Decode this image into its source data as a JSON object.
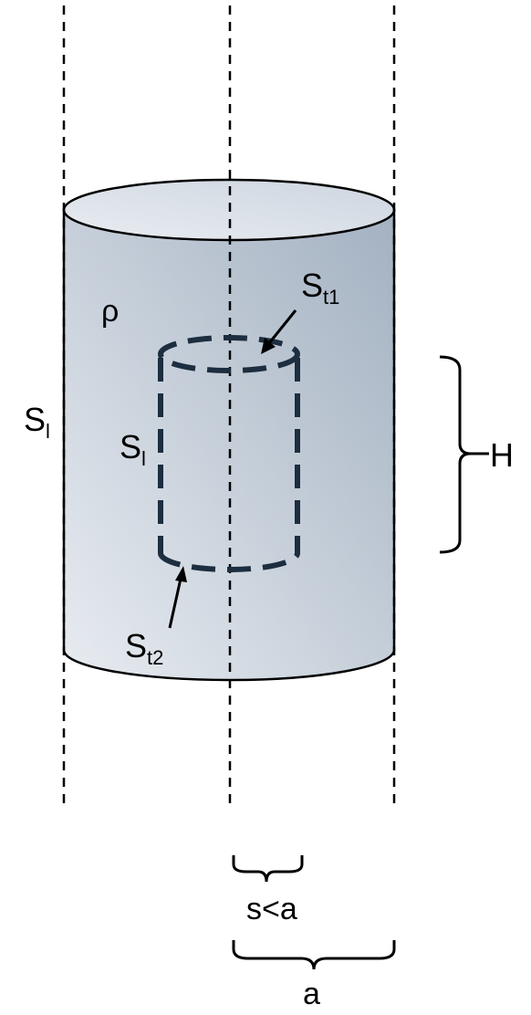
{
  "labels": {
    "density": "ρ",
    "outer_lateral_surface": {
      "main": "S",
      "sub": "l"
    },
    "inner_lateral_surface": {
      "main": "S",
      "sub": "l"
    },
    "top_surface": {
      "main": "S",
      "sub": "t1"
    },
    "bottom_surface": {
      "main": "S",
      "sub": "t2"
    },
    "height": "H",
    "inner_radius": "s<a",
    "outer_radius": "a"
  },
  "colors": {
    "cylinder_light": "#e6eaf0",
    "cylinder_dark": "#a4b2c2",
    "top_ellipse": "#dfe5ec",
    "inner_dash": "#1c2e3f",
    "stroke": "#000000"
  }
}
